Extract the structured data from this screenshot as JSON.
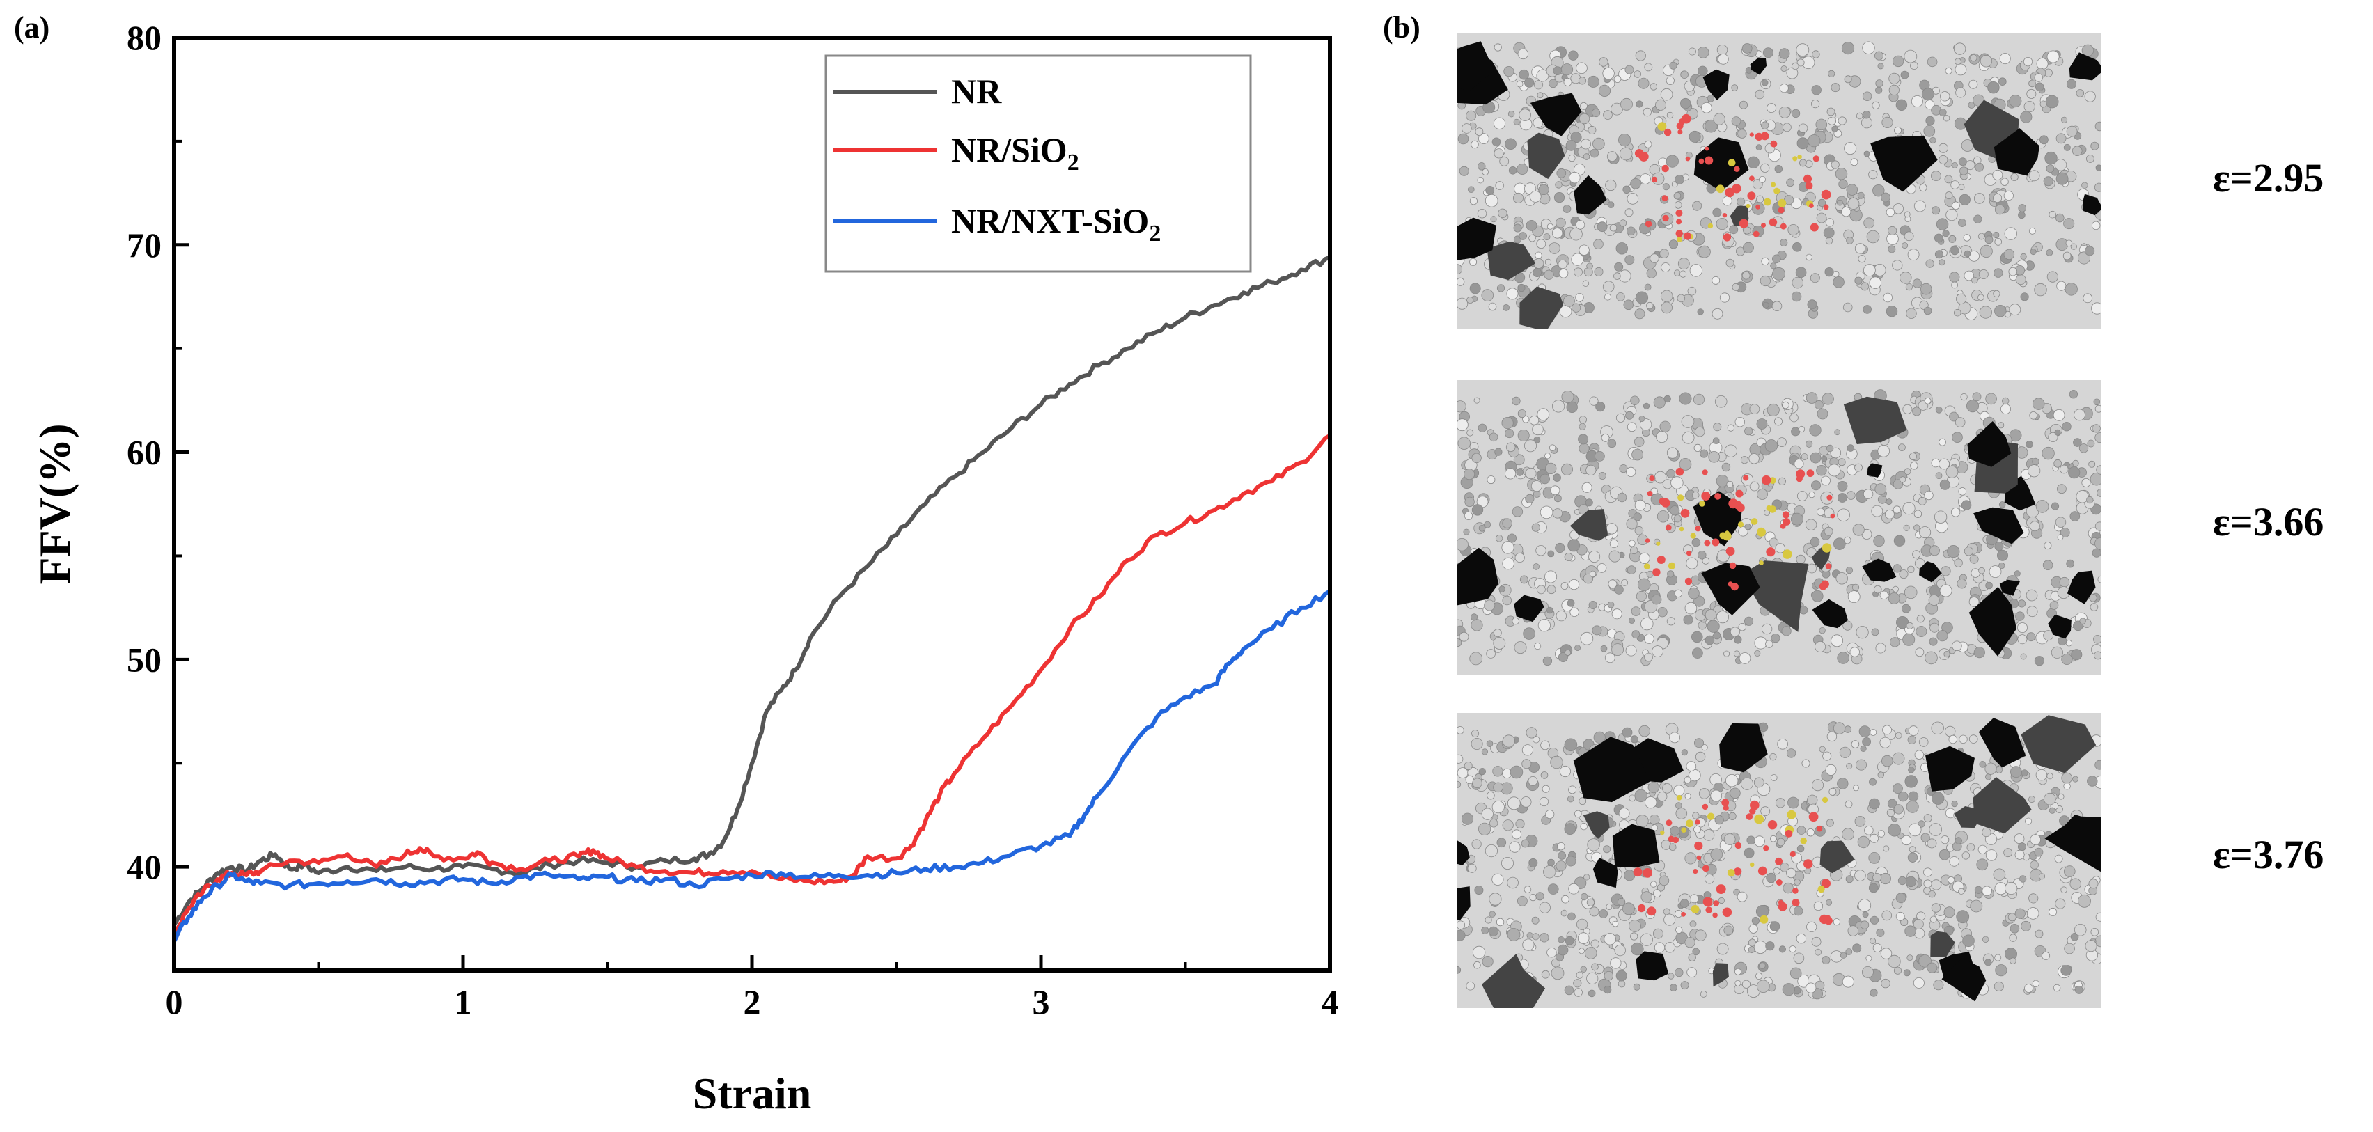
{
  "panel_labels": {
    "a": "(a)",
    "b": "(b)"
  },
  "chart_data": {
    "type": "line",
    "title": "",
    "xlabel": "Strain",
    "ylabel": "FFV(%)",
    "xlim": [
      0,
      4
    ],
    "ylim": [
      35,
      80
    ],
    "xticks": [
      0,
      1,
      2,
      3,
      4
    ],
    "yticks": [
      40,
      50,
      60,
      70,
      80
    ],
    "legend_position": "top-right",
    "series": [
      {
        "name": "NR",
        "color": "#555555",
        "points": [
          [
            0,
            37.2
          ],
          [
            0.05,
            38.3
          ],
          [
            0.1,
            39.0
          ],
          [
            0.15,
            39.7
          ],
          [
            0.2,
            40.0
          ],
          [
            0.25,
            39.8
          ],
          [
            0.3,
            40.3
          ],
          [
            0.35,
            40.6
          ],
          [
            0.4,
            39.9
          ],
          [
            0.45,
            40.1
          ],
          [
            0.5,
            39.7
          ],
          [
            0.6,
            40.0
          ],
          [
            0.7,
            39.8
          ],
          [
            0.8,
            40.0
          ],
          [
            0.9,
            39.9
          ],
          [
            1.0,
            40.0
          ],
          [
            1.1,
            39.9
          ],
          [
            1.2,
            39.7
          ],
          [
            1.3,
            40.1
          ],
          [
            1.4,
            40.3
          ],
          [
            1.5,
            40.2
          ],
          [
            1.6,
            40.0
          ],
          [
            1.7,
            40.3
          ],
          [
            1.8,
            40.4
          ],
          [
            1.85,
            40.6
          ],
          [
            1.9,
            41.2
          ],
          [
            1.95,
            42.8
          ],
          [
            2.0,
            45.0
          ],
          [
            2.05,
            47.5
          ],
          [
            2.1,
            48.5
          ],
          [
            2.15,
            49.5
          ],
          [
            2.2,
            51.0
          ],
          [
            2.3,
            53.0
          ],
          [
            2.4,
            54.5
          ],
          [
            2.5,
            56.0
          ],
          [
            2.6,
            57.5
          ],
          [
            2.7,
            58.8
          ],
          [
            2.8,
            60.0
          ],
          [
            2.9,
            61.2
          ],
          [
            3.0,
            62.3
          ],
          [
            3.1,
            63.3
          ],
          [
            3.2,
            64.2
          ],
          [
            3.3,
            65.0
          ],
          [
            3.4,
            65.8
          ],
          [
            3.5,
            66.5
          ],
          [
            3.6,
            67.1
          ],
          [
            3.7,
            67.7
          ],
          [
            3.8,
            68.2
          ],
          [
            3.9,
            68.8
          ],
          [
            4.0,
            69.4
          ]
        ]
      },
      {
        "name": "NR/SiO2",
        "color": "#ee3333",
        "points": [
          [
            0,
            36.8
          ],
          [
            0.05,
            38.0
          ],
          [
            0.1,
            38.8
          ],
          [
            0.15,
            39.4
          ],
          [
            0.2,
            39.7
          ],
          [
            0.25,
            39.6
          ],
          [
            0.3,
            39.8
          ],
          [
            0.4,
            40.3
          ],
          [
            0.5,
            40.2
          ],
          [
            0.6,
            40.6
          ],
          [
            0.7,
            40.0
          ],
          [
            0.8,
            40.6
          ],
          [
            0.85,
            40.9
          ],
          [
            0.9,
            40.5
          ],
          [
            1.0,
            40.4
          ],
          [
            1.05,
            40.7
          ],
          [
            1.1,
            40.2
          ],
          [
            1.2,
            39.9
          ],
          [
            1.3,
            40.3
          ],
          [
            1.4,
            40.5
          ],
          [
            1.45,
            40.8
          ],
          [
            1.5,
            40.4
          ],
          [
            1.6,
            40.0
          ],
          [
            1.7,
            39.8
          ],
          [
            1.8,
            39.7
          ],
          [
            1.9,
            39.8
          ],
          [
            2.0,
            39.8
          ],
          [
            2.1,
            39.4
          ],
          [
            2.2,
            39.3
          ],
          [
            2.3,
            39.3
          ],
          [
            2.35,
            39.6
          ],
          [
            2.4,
            40.5
          ],
          [
            2.5,
            40.4
          ],
          [
            2.55,
            41.0
          ],
          [
            2.6,
            42.2
          ],
          [
            2.65,
            43.5
          ],
          [
            2.7,
            44.5
          ],
          [
            2.8,
            46.2
          ],
          [
            2.9,
            47.8
          ],
          [
            3.0,
            49.5
          ],
          [
            3.1,
            51.5
          ],
          [
            3.2,
            53.0
          ],
          [
            3.3,
            54.8
          ],
          [
            3.4,
            56.0
          ],
          [
            3.5,
            56.6
          ],
          [
            3.6,
            57.2
          ],
          [
            3.7,
            58.0
          ],
          [
            3.8,
            58.6
          ],
          [
            3.9,
            59.5
          ],
          [
            4.0,
            60.8
          ]
        ]
      },
      {
        "name": "NR/NXT-SiO2",
        "color": "#2266dd",
        "points": [
          [
            0,
            36.4
          ],
          [
            0.05,
            37.6
          ],
          [
            0.1,
            38.5
          ],
          [
            0.15,
            39.1
          ],
          [
            0.2,
            39.6
          ],
          [
            0.25,
            39.3
          ],
          [
            0.3,
            39.2
          ],
          [
            0.4,
            39.1
          ],
          [
            0.5,
            39.2
          ],
          [
            0.6,
            39.3
          ],
          [
            0.7,
            39.4
          ],
          [
            0.8,
            39.2
          ],
          [
            0.9,
            39.3
          ],
          [
            1.0,
            39.4
          ],
          [
            1.1,
            39.2
          ],
          [
            1.2,
            39.5
          ],
          [
            1.3,
            39.6
          ],
          [
            1.4,
            39.4
          ],
          [
            1.5,
            39.5
          ],
          [
            1.6,
            39.3
          ],
          [
            1.7,
            39.4
          ],
          [
            1.8,
            39.1
          ],
          [
            1.9,
            39.4
          ],
          [
            2.0,
            39.6
          ],
          [
            2.1,
            39.7
          ],
          [
            2.2,
            39.5
          ],
          [
            2.3,
            39.6
          ],
          [
            2.4,
            39.6
          ],
          [
            2.5,
            39.7
          ],
          [
            2.6,
            39.9
          ],
          [
            2.7,
            40.0
          ],
          [
            2.8,
            40.2
          ],
          [
            2.9,
            40.6
          ],
          [
            3.0,
            41.0
          ],
          [
            3.1,
            41.5
          ],
          [
            3.15,
            42.5
          ],
          [
            3.2,
            43.5
          ],
          [
            3.3,
            45.5
          ],
          [
            3.4,
            47.2
          ],
          [
            3.5,
            48.2
          ],
          [
            3.6,
            48.8
          ],
          [
            3.65,
            49.8
          ],
          [
            3.7,
            50.5
          ],
          [
            3.8,
            51.5
          ],
          [
            3.9,
            52.5
          ],
          [
            4.0,
            53.3
          ]
        ]
      }
    ]
  },
  "legend": {
    "nr": {
      "base": "NR",
      "sub": "",
      "tail": ""
    },
    "nr_sio2": {
      "base": "NR/SiO",
      "sub": "2",
      "tail": ""
    },
    "nr_nxt_sio2": {
      "base": "NR/NXT-SiO",
      "sub": "2",
      "tail": ""
    }
  },
  "snapshots": [
    {
      "label": "ε=2.95"
    },
    {
      "label": "ε=3.66"
    },
    {
      "label": "ε=3.76"
    }
  ]
}
